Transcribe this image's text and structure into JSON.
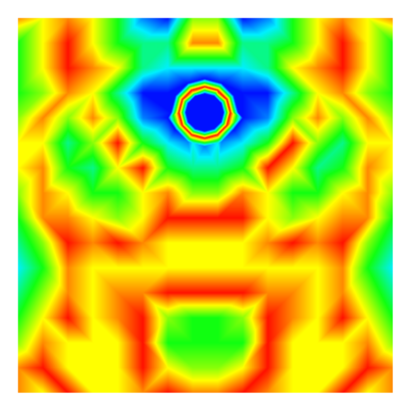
{
  "chart_data": {
    "type": "heatmap",
    "x": [
      0,
      1,
      2,
      3,
      4,
      5,
      6,
      7,
      8,
      9,
      10,
      11,
      12,
      13,
      14,
      15
    ],
    "y": [
      0,
      1,
      2,
      3,
      4,
      5,
      6,
      7,
      8,
      9,
      10,
      11,
      12,
      13,
      14,
      15
    ],
    "z": [
      [
        7,
        6,
        7,
        6,
        4,
        1,
        0,
        5,
        5,
        0,
        1,
        4,
        6,
        7,
        6,
        7
      ],
      [
        4,
        6,
        8,
        6,
        4,
        3,
        3,
        7,
        7,
        3,
        3,
        4,
        6,
        8,
        6,
        4
      ],
      [
        4,
        6,
        8,
        7,
        6,
        3,
        2,
        2,
        2,
        2,
        3,
        6,
        7,
        8,
        6,
        4
      ],
      [
        4,
        5,
        7,
        6,
        3,
        0,
        0,
        6,
        7,
        0,
        0,
        3,
        6,
        7,
        5,
        4
      ],
      [
        5,
        7,
        5,
        7,
        5,
        1,
        0,
        0,
        0,
        0,
        1,
        5,
        7,
        5,
        7,
        5
      ],
      [
        6,
        6,
        3,
        5,
        8,
        4,
        2,
        2,
        2,
        2,
        4,
        8,
        5,
        3,
        6,
        6
      ],
      [
        6,
        7,
        4,
        3,
        6,
        8,
        4,
        3,
        3,
        4,
        8,
        6,
        3,
        4,
        7,
        6
      ],
      [
        5,
        7,
        6,
        4,
        4,
        6,
        7,
        5,
        5,
        7,
        6,
        4,
        4,
        6,
        7,
        5
      ],
      [
        4,
        7,
        7,
        6,
        5,
        6,
        8,
        8,
        8,
        8,
        6,
        5,
        6,
        7,
        7,
        4
      ],
      [
        3,
        5,
        8,
        7,
        8,
        7,
        6,
        6,
        6,
        6,
        7,
        8,
        7,
        8,
        5,
        3
      ],
      [
        2,
        4,
        7,
        6,
        6,
        6,
        6,
        6,
        6,
        6,
        6,
        6,
        6,
        7,
        4,
        2
      ],
      [
        3,
        5,
        7,
        6,
        7,
        7,
        8,
        8,
        8,
        8,
        7,
        7,
        6,
        7,
        5,
        3
      ],
      [
        4,
        6,
        8,
        6,
        7,
        8,
        5,
        4,
        4,
        5,
        8,
        7,
        6,
        8,
        6,
        4
      ],
      [
        5,
        7,
        6,
        6,
        6,
        8,
        4,
        4,
        4,
        4,
        8,
        6,
        6,
        6,
        7,
        5
      ],
      [
        7,
        8,
        6,
        6,
        6,
        8,
        6,
        5,
        5,
        6,
        8,
        6,
        6,
        6,
        8,
        7
      ],
      [
        7,
        6,
        8,
        6,
        6,
        7,
        8,
        7,
        7,
        8,
        7,
        6,
        6,
        8,
        6,
        7
      ]
    ],
    "samples": [
      [
        7.47,
        3.78,
        0
      ],
      [
        8.22,
        3.78,
        0
      ],
      [
        8.12,
        4.16,
        0
      ],
      [
        7.85,
        4.43,
        0
      ],
      [
        7.47,
        4.53,
        0
      ],
      [
        7.1,
        4.43,
        0
      ],
      [
        6.82,
        4.16,
        0
      ],
      [
        6.72,
        3.78,
        0
      ],
      [
        6.82,
        3.41,
        0
      ],
      [
        7.1,
        3.13,
        0
      ],
      [
        7.47,
        3.03,
        0
      ],
      [
        7.85,
        3.13,
        0
      ],
      [
        8.12,
        3.41,
        0
      ],
      [
        8.5,
        3.78,
        8
      ],
      [
        8.36,
        4.3,
        8
      ],
      [
        7.99,
        4.67,
        8
      ],
      [
        7.47,
        4.81,
        8
      ],
      [
        6.95,
        4.67,
        8
      ],
      [
        6.58,
        4.3,
        8
      ],
      [
        6.44,
        3.78,
        8
      ],
      [
        6.58,
        3.26,
        8
      ],
      [
        6.95,
        2.89,
        8
      ],
      [
        7.47,
        2.75,
        8
      ],
      [
        7.99,
        2.89,
        8
      ],
      [
        8.36,
        3.26,
        8
      ],
      [
        8.82,
        3.78,
        0
      ],
      [
        8.64,
        4.46,
        0
      ],
      [
        8.15,
        4.95,
        1
      ],
      [
        7.47,
        5.13,
        1
      ],
      [
        6.8,
        4.95,
        1
      ],
      [
        6.3,
        4.46,
        0
      ],
      [
        6.12,
        3.78,
        0
      ],
      [
        6.3,
        3.11,
        0
      ],
      [
        6.8,
        2.61,
        0
      ],
      [
        7.47,
        2.43,
        0
      ],
      [
        8.15,
        2.61,
        0
      ],
      [
        8.64,
        3.11,
        0
      ]
    ],
    "xlim": [
      0,
      15
    ],
    "ylim": [
      0,
      15
    ],
    "zlim": [
      0,
      8
    ],
    "tick_labels": false
  }
}
